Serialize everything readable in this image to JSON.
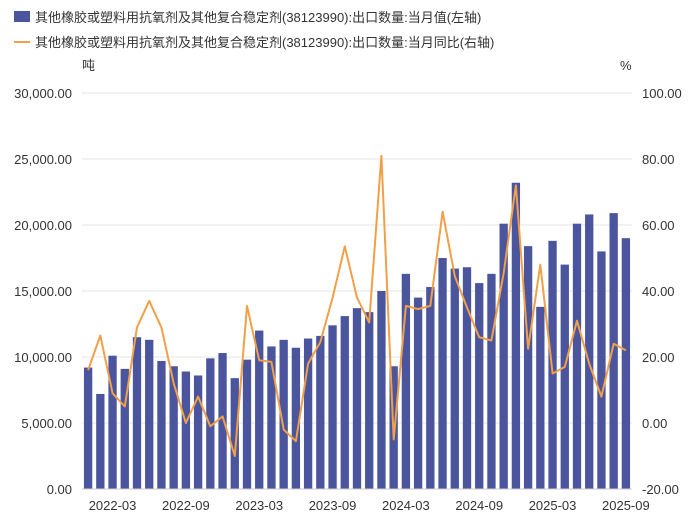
{
  "chart_data": {
    "type": "bar+line",
    "legend": [
      {
        "name": "其他橡胶或塑料用抗氧剂及其他复合稳定剂(38123990):出口数量:当月值(左轴)",
        "color": "#4b559e",
        "kind": "bar"
      },
      {
        "name": "其他橡胶或塑料用抗氧剂及其他复合稳定剂(38123990):出口数量:当月同比(右轴)",
        "color": "#f0a048",
        "kind": "line"
      }
    ],
    "left_unit": "吨",
    "right_unit": "%",
    "left_axis": {
      "min": 0,
      "max": 30000,
      "ticks": [
        "0.00",
        "5,000.00",
        "10,000.00",
        "15,000.00",
        "20,000.00",
        "25,000.00",
        "30,000.00"
      ]
    },
    "right_axis": {
      "min": -20,
      "max": 100,
      "ticks": [
        "-20.00",
        "0.00",
        "20.00",
        "40.00",
        "60.00",
        "80.00",
        "100.00"
      ]
    },
    "x_tick_labels": [
      "2022-03",
      "2022-09",
      "2023-03",
      "2023-09",
      "2024-03",
      "2024-09",
      "2025-03",
      "2025-09"
    ],
    "categories": [
      "2022-01",
      "2022-02",
      "2022-03",
      "2022-04",
      "2022-05",
      "2022-06",
      "2022-07",
      "2022-08",
      "2022-09",
      "2022-10",
      "2022-11",
      "2022-12",
      "2023-01",
      "2023-02",
      "2023-03",
      "2023-04",
      "2023-05",
      "2023-06",
      "2023-07",
      "2023-08",
      "2023-09",
      "2023-10",
      "2023-11",
      "2023-12",
      "2024-01",
      "2024-02",
      "2024-03",
      "2024-04",
      "2024-05",
      "2024-06",
      "2024-07",
      "2024-08",
      "2024-09",
      "2024-10",
      "2024-11",
      "2024-12",
      "2025-01",
      "2025-02",
      "2025-03",
      "2025-04",
      "2025-05",
      "2025-06",
      "2025-07",
      "2025-08",
      "2025-09"
    ],
    "series": [
      {
        "name": "当月值",
        "axis": "left",
        "values": [
          9200,
          7200,
          10100,
          9100,
          11500,
          11300,
          9700,
          9300,
          8900,
          8600,
          9900,
          10300,
          8400,
          9800,
          12000,
          10800,
          11300,
          10700,
          11400,
          11600,
          12400,
          13100,
          13700,
          13400,
          15000,
          9300,
          16300,
          14500,
          15300,
          17500,
          16700,
          16800,
          15600,
          16300,
          20100,
          23200,
          18400,
          13800,
          18800,
          17000,
          20100,
          20800,
          18000,
          20900,
          19000
        ]
      },
      {
        "name": "当月同比",
        "axis": "right",
        "values": [
          16,
          26.5,
          9,
          5,
          29,
          37,
          29,
          12,
          0,
          8,
          -1,
          2,
          -10,
          35.5,
          19,
          18.5,
          -2,
          -5.5,
          18,
          24.5,
          38,
          53.5,
          38,
          30.5,
          81,
          -5,
          35.5,
          34.5,
          35.5,
          64,
          44.5,
          35,
          26,
          25,
          45.5,
          72,
          22.5,
          48,
          15,
          17,
          31,
          18,
          8,
          24,
          22
        ]
      }
    ]
  }
}
